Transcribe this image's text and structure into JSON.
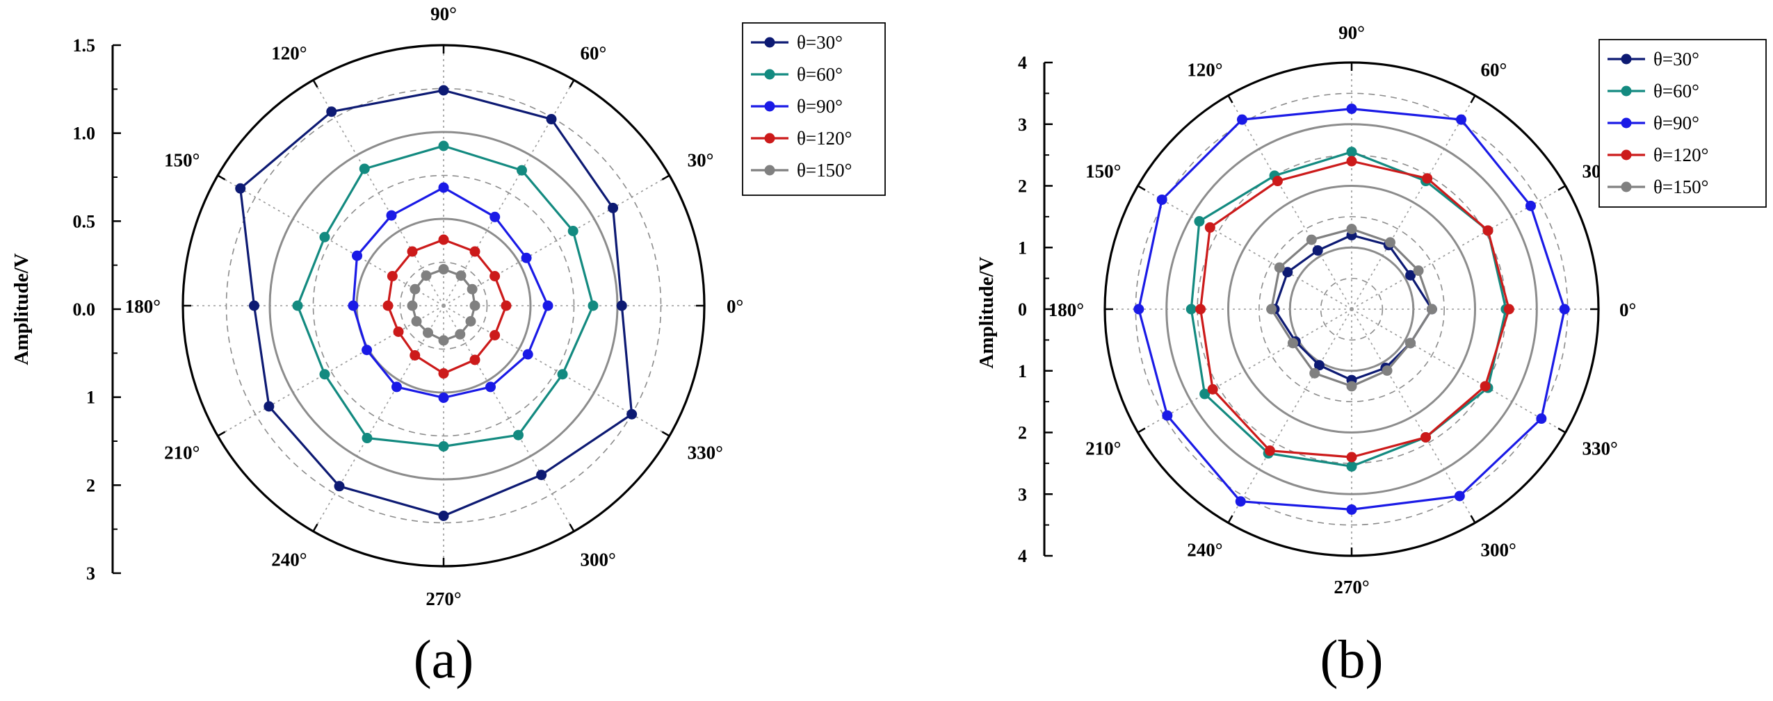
{
  "chart_data": [
    {
      "type": "polar-line",
      "panel_label": "(a)",
      "ylabel": "Amplitude/V",
      "radial_axis_ticks": [
        "1.5",
        "1.0",
        "0.5",
        "0.0",
        "1",
        "2",
        "3"
      ],
      "angular_labels": [
        "0°",
        "30°",
        "60°",
        "90°",
        "120°",
        "150°",
        "180°",
        "210°",
        "240°",
        "270°",
        "300°",
        "330°"
      ],
      "angles_deg": [
        0,
        30,
        60,
        90,
        120,
        150,
        180,
        210,
        240,
        270,
        300,
        330
      ],
      "legend_position": "top-right",
      "series": [
        {
          "name": "θ=30°",
          "color": "#0d1a73",
          "r": [
            2.05,
            2.25,
            2.48,
            2.48,
            2.58,
            2.7,
            2.18,
            2.32,
            2.4,
            2.42,
            2.25,
            2.5
          ]
        },
        {
          "name": "θ=60°",
          "color": "#138a80",
          "r": [
            1.72,
            1.72,
            1.8,
            1.84,
            1.82,
            1.58,
            1.68,
            1.58,
            1.76,
            1.62,
            1.72,
            1.58
          ]
        },
        {
          "name": "θ=90°",
          "color": "#1a1ae6",
          "r": [
            1.2,
            1.1,
            1.18,
            1.36,
            1.2,
            1.15,
            1.04,
            1.02,
            1.08,
            1.06,
            1.08,
            1.12
          ]
        },
        {
          "name": "θ=120°",
          "color": "#cc1a1a",
          "r": [
            0.72,
            0.68,
            0.72,
            0.76,
            0.72,
            0.68,
            0.64,
            0.6,
            0.66,
            0.78,
            0.72,
            0.68
          ]
        },
        {
          "name": "θ=150°",
          "color": "#808080",
          "r": [
            0.36,
            0.38,
            0.4,
            0.42,
            0.4,
            0.38,
            0.36,
            0.36,
            0.36,
            0.4,
            0.38,
            0.36
          ]
        }
      ]
    },
    {
      "type": "polar-line",
      "panel_label": "(b)",
      "ylabel": "Amplitude/V",
      "radial_axis_ticks": [
        "4",
        "3",
        "2",
        "1",
        "0",
        "1",
        "2",
        "3",
        "4"
      ],
      "angular_labels": [
        "0°",
        "30°",
        "60°",
        "90°",
        "120°",
        "150°",
        "180°",
        "210°",
        "240°",
        "270°",
        "300°",
        "330°"
      ],
      "angles_deg": [
        0,
        30,
        60,
        90,
        120,
        150,
        180,
        210,
        240,
        270,
        300,
        330
      ],
      "legend_position": "top-right",
      "series": [
        {
          "name": "θ=30°",
          "color": "#0d1a73",
          "r": [
            1.3,
            1.1,
            1.2,
            1.2,
            1.1,
            1.2,
            1.25,
            1.05,
            1.05,
            1.15,
            1.1,
            1.1
          ]
        },
        {
          "name": "θ=60°",
          "color": "#138a80",
          "r": [
            2.5,
            2.55,
            2.4,
            2.55,
            2.5,
            2.85,
            2.6,
            2.75,
            2.7,
            2.55,
            2.4,
            2.55
          ]
        },
        {
          "name": "θ=90°",
          "color": "#1a1ae6",
          "r": [
            3.45,
            3.35,
            3.55,
            3.25,
            3.55,
            3.55,
            3.45,
            3.45,
            3.6,
            3.25,
            3.5,
            3.55
          ]
        },
        {
          "name": "θ=120°",
          "color": "#cc1a1a",
          "r": [
            2.55,
            2.55,
            2.45,
            2.4,
            2.4,
            2.65,
            2.45,
            2.6,
            2.65,
            2.4,
            2.4,
            2.5
          ]
        },
        {
          "name": "θ=150°",
          "color": "#808080",
          "r": [
            1.3,
            1.25,
            1.25,
            1.3,
            1.3,
            1.35,
            1.3,
            1.1,
            1.2,
            1.25,
            1.15,
            1.1
          ]
        }
      ]
    }
  ]
}
